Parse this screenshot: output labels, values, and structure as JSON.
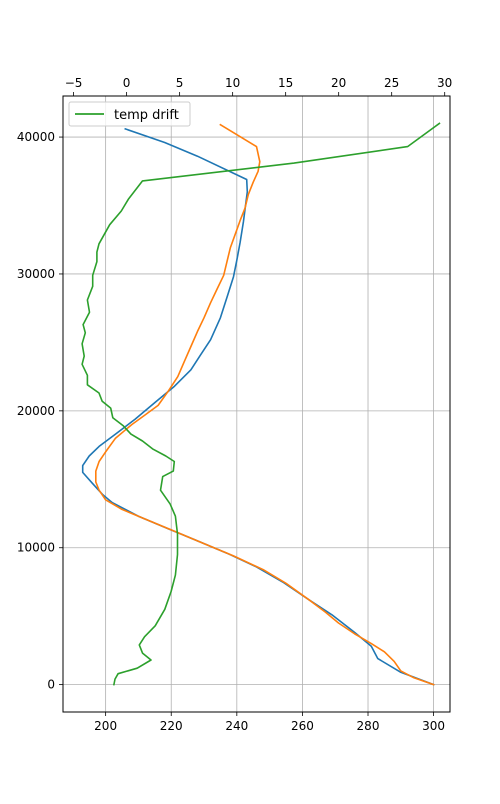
{
  "chart_data": {
    "type": "line",
    "title": "",
    "xlabel": "",
    "ylabel": "",
    "grid": true,
    "legend": {
      "placement": "top-left",
      "entries": [
        "temp drift"
      ]
    },
    "axes": {
      "y": {
        "lim": [
          -2000,
          43000
        ],
        "ticks": [
          0,
          10000,
          20000,
          30000,
          40000
        ],
        "tick_labels": [
          "0",
          "10000",
          "20000",
          "30000",
          "40000"
        ]
      },
      "x_bottom": {
        "lim": [
          187,
          305
        ],
        "ticks": [
          200,
          220,
          240,
          260,
          280,
          300
        ],
        "tick_labels": [
          "200",
          "220",
          "240",
          "260",
          "280",
          "300"
        ]
      },
      "x_top": {
        "lim": [
          -6,
          30.5
        ],
        "ticks": [
          -5,
          0,
          5,
          10,
          15,
          20,
          25,
          30
        ],
        "tick_labels": [
          "−5",
          "0",
          "5",
          "10",
          "15",
          "20",
          "25",
          "30"
        ]
      }
    },
    "series": [
      {
        "color": "#1f77b4",
        "x_axis": "bottom",
        "points": [
          [
            300,
            0
          ],
          [
            290,
            900
          ],
          [
            283,
            1900
          ],
          [
            281,
            2800
          ],
          [
            276,
            3800
          ],
          [
            269,
            5100
          ],
          [
            262,
            6200
          ],
          [
            254,
            7500
          ],
          [
            246,
            8600
          ],
          [
            237,
            9600
          ],
          [
            228,
            10500
          ],
          [
            219,
            11400
          ],
          [
            210,
            12300
          ],
          [
            202,
            13300
          ],
          [
            199,
            13900
          ],
          [
            196,
            14700
          ],
          [
            193,
            15500
          ],
          [
            193,
            16000
          ],
          [
            195,
            16700
          ],
          [
            198,
            17400
          ],
          [
            203,
            18300
          ],
          [
            209,
            19400
          ],
          [
            215,
            20600
          ],
          [
            221,
            21800
          ],
          [
            226,
            23000
          ],
          [
            229,
            24100
          ],
          [
            232,
            25200
          ],
          [
            235,
            26800
          ],
          [
            237,
            28300
          ],
          [
            239,
            29800
          ],
          [
            240,
            31000
          ],
          [
            241,
            32300
          ],
          [
            242,
            33800
          ],
          [
            242.7,
            35100
          ],
          [
            243.2,
            36000
          ],
          [
            243,
            36900
          ],
          [
            228,
            38600
          ],
          [
            218,
            39600
          ],
          [
            206,
            40600
          ]
        ]
      },
      {
        "color": "#ff7f0e",
        "x_axis": "bottom",
        "points": [
          [
            300,
            0
          ],
          [
            294,
            500
          ],
          [
            290,
            1000
          ],
          [
            288,
            1700
          ],
          [
            285,
            2400
          ],
          [
            281,
            3000
          ],
          [
            276,
            3700
          ],
          [
            271,
            4500
          ],
          [
            267,
            5300
          ],
          [
            262,
            6200
          ],
          [
            255,
            7400
          ],
          [
            248,
            8400
          ],
          [
            239,
            9400
          ],
          [
            229,
            10400
          ],
          [
            220,
            11300
          ],
          [
            212,
            12100
          ],
          [
            205,
            12800
          ],
          [
            200,
            13500
          ],
          [
            198,
            14200
          ],
          [
            197,
            14800
          ],
          [
            197,
            15600
          ],
          [
            198,
            16300
          ],
          [
            200,
            17000
          ],
          [
            203,
            18000
          ],
          [
            208,
            19000
          ],
          [
            212,
            19700
          ],
          [
            216,
            20400
          ],
          [
            219,
            21400
          ],
          [
            222,
            22500
          ],
          [
            224,
            23600
          ],
          [
            226,
            24700
          ],
          [
            228,
            25800
          ],
          [
            230,
            26800
          ],
          [
            232,
            27900
          ],
          [
            234,
            28900
          ],
          [
            236,
            29900
          ],
          [
            237,
            30900
          ],
          [
            238,
            31900
          ],
          [
            239.5,
            32900
          ],
          [
            241,
            33900
          ],
          [
            242.5,
            34800
          ],
          [
            243.5,
            35800
          ],
          [
            245,
            36700
          ],
          [
            246.5,
            37500
          ],
          [
            247,
            38200
          ],
          [
            246,
            39300
          ],
          [
            235,
            40900
          ]
        ]
      },
      {
        "name": "temp drift",
        "color": "#2ca02c",
        "x_axis": "top",
        "points": [
          [
            -1.2,
            0
          ],
          [
            -1.1,
            400
          ],
          [
            -0.8,
            800
          ],
          [
            1,
            1200
          ],
          [
            2.3,
            1800
          ],
          [
            1.5,
            2300
          ],
          [
            1.2,
            2900
          ],
          [
            1.7,
            3500
          ],
          [
            2.7,
            4300
          ],
          [
            3.6,
            5500
          ],
          [
            4.2,
            6800
          ],
          [
            4.6,
            8000
          ],
          [
            4.8,
            9500
          ],
          [
            4.8,
            11000
          ],
          [
            4.6,
            12300
          ],
          [
            4.1,
            13200
          ],
          [
            3.2,
            14200
          ],
          [
            3.4,
            15200
          ],
          [
            4.4,
            15600
          ],
          [
            4.5,
            16300
          ],
          [
            3.7,
            16700
          ],
          [
            2.5,
            17200
          ],
          [
            1.5,
            17800
          ],
          [
            0.4,
            18300
          ],
          [
            -0.3,
            18900
          ],
          [
            -1.3,
            19500
          ],
          [
            -1.5,
            20200
          ],
          [
            -2.3,
            20700
          ],
          [
            -2.6,
            21300
          ],
          [
            -3.7,
            21900
          ],
          [
            -3.7,
            22600
          ],
          [
            -4.2,
            23400
          ],
          [
            -4,
            24000
          ],
          [
            -4.2,
            24900
          ],
          [
            -3.9,
            25700
          ],
          [
            -4.1,
            26300
          ],
          [
            -3.5,
            27200
          ],
          [
            -3.7,
            28100
          ],
          [
            -3.2,
            29100
          ],
          [
            -3.2,
            29900
          ],
          [
            -2.8,
            30900
          ],
          [
            -2.8,
            31600
          ],
          [
            -2.6,
            32200
          ],
          [
            -1.6,
            33600
          ],
          [
            -0.5,
            34600
          ],
          [
            0.2,
            35500
          ],
          [
            1.5,
            36800
          ],
          [
            12.5,
            37800
          ],
          [
            15.8,
            38100
          ],
          [
            26.5,
            39300
          ],
          [
            29.5,
            41000
          ]
        ]
      }
    ]
  }
}
